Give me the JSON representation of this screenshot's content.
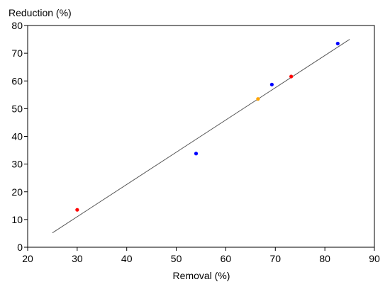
{
  "chart_data": {
    "type": "scatter",
    "title": "",
    "xlabel": "Removal (%)",
    "ylabel": "Reduction (%)",
    "xlim": [
      20,
      90
    ],
    "ylim": [
      0,
      80
    ],
    "xticks": [
      20,
      30,
      40,
      50,
      60,
      70,
      80,
      90
    ],
    "yticks": [
      0,
      10,
      20,
      30,
      40,
      50,
      60,
      70,
      80
    ],
    "grid": false,
    "legend": "none",
    "points": [
      {
        "x": 30.0,
        "y": 13.5,
        "color": "#ff0000"
      },
      {
        "x": 54.0,
        "y": 33.8,
        "color": "#0000ff"
      },
      {
        "x": 66.5,
        "y": 53.5,
        "color": "#ffa500"
      },
      {
        "x": 69.3,
        "y": 58.7,
        "color": "#0000ff"
      },
      {
        "x": 73.2,
        "y": 61.6,
        "color": "#ff0000"
      },
      {
        "x": 82.6,
        "y": 73.5,
        "color": "#0000ff"
      }
    ],
    "trend_line": {
      "x": [
        25,
        85
      ],
      "y": [
        5.2,
        75.0
      ],
      "color": "#555555"
    },
    "colors": {
      "axis": "#000000",
      "frame": "#000000"
    }
  }
}
